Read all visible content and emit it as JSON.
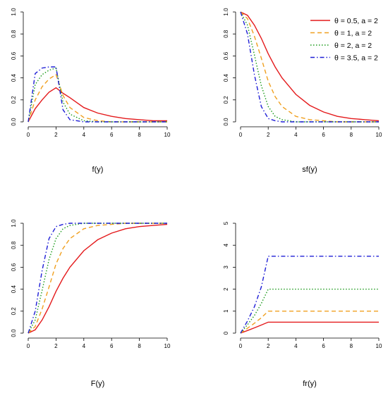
{
  "colors": {
    "red": "#e41a1c",
    "orange": "#f0a020",
    "green": "#1a9a1a",
    "blue": "#1f1fd6"
  },
  "legend": [
    {
      "label": "θ = 0.5, a = 2",
      "color": "#e41a1c",
      "dash": "solid"
    },
    {
      "label": "θ = 1, a = 2",
      "color": "#f0a020",
      "dash": "dashed"
    },
    {
      "label": "θ = 2, a = 2",
      "color": "#1a9a1a",
      "dash": "dotted"
    },
    {
      "label": "θ = 3.5, a = 2",
      "color": "#1f1fd6",
      "dash": "dotdash"
    }
  ],
  "chart_data": [
    {
      "type": "line",
      "xlabel": "f(y)",
      "xlim": [
        0,
        10
      ],
      "ylim": [
        0,
        1.0
      ],
      "x_ticks": [
        0,
        2,
        4,
        6,
        8,
        10
      ],
      "y_ticks": [
        0.0,
        0.2,
        0.4,
        0.6,
        0.8,
        1.0
      ],
      "y_tick_labels": [
        "0.0",
        "0.2",
        "0.4",
        "0.6",
        "0.8",
        "1.0"
      ],
      "x": [
        0,
        0.5,
        1,
        1.5,
        2,
        2.5,
        3,
        4,
        5,
        6,
        7,
        8,
        9,
        10
      ],
      "series": [
        {
          "values": [
            0.0,
            0.12,
            0.2,
            0.27,
            0.31,
            0.26,
            0.22,
            0.13,
            0.08,
            0.05,
            0.03,
            0.02,
            0.01,
            0.01
          ]
        },
        {
          "values": [
            0.0,
            0.2,
            0.32,
            0.39,
            0.43,
            0.24,
            0.13,
            0.04,
            0.01,
            0.0,
            0.0,
            0.0,
            0.0,
            0.0
          ]
        },
        {
          "values": [
            0.0,
            0.34,
            0.43,
            0.47,
            0.49,
            0.18,
            0.07,
            0.01,
            0.0,
            0.0,
            0.0,
            0.0,
            0.0,
            0.0
          ]
        },
        {
          "values": [
            0.0,
            0.44,
            0.49,
            0.5,
            0.5,
            0.11,
            0.02,
            0.0,
            0.0,
            0.0,
            0.0,
            0.0,
            0.0,
            0.0
          ]
        }
      ]
    },
    {
      "type": "line",
      "xlabel": "sf(y)",
      "xlim": [
        0,
        10
      ],
      "ylim": [
        0,
        1.0
      ],
      "x_ticks": [
        0,
        2,
        4,
        6,
        8,
        10
      ],
      "y_ticks": [
        0.0,
        0.2,
        0.4,
        0.6,
        0.8,
        1.0
      ],
      "y_tick_labels": [
        "0.0",
        "0.2",
        "0.4",
        "0.6",
        "0.8",
        "1.0"
      ],
      "x": [
        0,
        0.5,
        1,
        1.5,
        2,
        2.5,
        3,
        4,
        5,
        6,
        7,
        8,
        9,
        10
      ],
      "series": [
        {
          "values": [
            1.0,
            0.97,
            0.88,
            0.76,
            0.62,
            0.5,
            0.4,
            0.25,
            0.15,
            0.09,
            0.05,
            0.03,
            0.02,
            0.01
          ]
        },
        {
          "values": [
            1.0,
            0.94,
            0.78,
            0.58,
            0.37,
            0.23,
            0.14,
            0.05,
            0.02,
            0.01,
            0.0,
            0.0,
            0.0,
            0.0
          ]
        },
        {
          "values": [
            1.0,
            0.88,
            0.61,
            0.33,
            0.14,
            0.05,
            0.02,
            0.0,
            0.0,
            0.0,
            0.0,
            0.0,
            0.0,
            0.0
          ]
        },
        {
          "values": [
            1.0,
            0.8,
            0.43,
            0.14,
            0.03,
            0.01,
            0.0,
            0.0,
            0.0,
            0.0,
            0.0,
            0.0,
            0.0,
            0.0
          ]
        }
      ]
    },
    {
      "type": "line",
      "xlabel": "F(y)",
      "xlim": [
        0,
        10
      ],
      "ylim": [
        0,
        1.0
      ],
      "x_ticks": [
        0,
        2,
        4,
        6,
        8,
        10
      ],
      "y_ticks": [
        0.0,
        0.2,
        0.4,
        0.6,
        0.8,
        1.0
      ],
      "y_tick_labels": [
        "0.0",
        "0.2",
        "0.4",
        "0.6",
        "0.8",
        "1.0"
      ],
      "x": [
        0,
        0.5,
        1,
        1.5,
        2,
        2.5,
        3,
        4,
        5,
        6,
        7,
        8,
        9,
        10
      ],
      "series": [
        {
          "values": [
            0.0,
            0.03,
            0.12,
            0.24,
            0.38,
            0.5,
            0.6,
            0.75,
            0.85,
            0.91,
            0.95,
            0.97,
            0.98,
            0.99
          ]
        },
        {
          "values": [
            0.0,
            0.06,
            0.22,
            0.42,
            0.63,
            0.77,
            0.86,
            0.95,
            0.98,
            0.99,
            1.0,
            1.0,
            1.0,
            1.0
          ]
        },
        {
          "values": [
            0.0,
            0.12,
            0.39,
            0.67,
            0.86,
            0.95,
            0.98,
            1.0,
            1.0,
            1.0,
            1.0,
            1.0,
            1.0,
            1.0
          ]
        },
        {
          "values": [
            0.0,
            0.2,
            0.57,
            0.86,
            0.97,
            0.99,
            1.0,
            1.0,
            1.0,
            1.0,
            1.0,
            1.0,
            1.0,
            1.0
          ]
        }
      ]
    },
    {
      "type": "line",
      "xlabel": "fr(y)",
      "xlim": [
        0,
        10
      ],
      "ylim": [
        0,
        5
      ],
      "x_ticks": [
        0,
        2,
        4,
        6,
        8,
        10
      ],
      "y_ticks": [
        0,
        1,
        2,
        3,
        4,
        5
      ],
      "y_tick_labels": [
        "0",
        "1",
        "2",
        "3",
        "4",
        "5"
      ],
      "x": [
        0,
        0.5,
        1,
        1.5,
        2,
        2.5,
        3,
        4,
        5,
        6,
        7,
        8,
        9,
        10
      ],
      "series": [
        {
          "values": [
            0.0,
            0.12,
            0.24,
            0.37,
            0.5,
            0.5,
            0.5,
            0.5,
            0.5,
            0.5,
            0.5,
            0.5,
            0.5,
            0.5
          ]
        },
        {
          "values": [
            0.0,
            0.22,
            0.45,
            0.7,
            1.0,
            1.0,
            1.0,
            1.0,
            1.0,
            1.0,
            1.0,
            1.0,
            1.0,
            1.0
          ]
        },
        {
          "values": [
            0.0,
            0.38,
            0.8,
            1.35,
            2.0,
            2.0,
            2.0,
            2.0,
            2.0,
            2.0,
            2.0,
            2.0,
            2.0,
            2.0
          ]
        },
        {
          "values": [
            0.0,
            0.55,
            1.2,
            2.1,
            3.5,
            3.5,
            3.5,
            3.5,
            3.5,
            3.5,
            3.5,
            3.5,
            3.5,
            3.5
          ]
        }
      ]
    }
  ]
}
